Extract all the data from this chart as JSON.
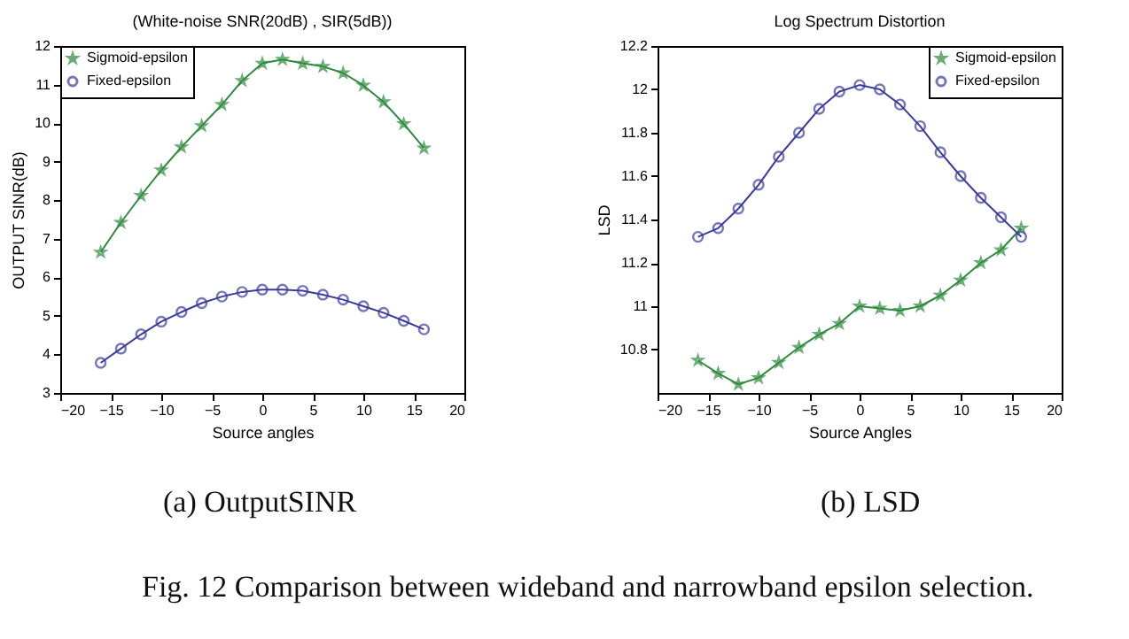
{
  "chart_data": [
    {
      "type": "line",
      "title": "(White-noise SNR(20dB) , SIR(5dB))",
      "xlabel": "Source angles",
      "ylabel": "OUTPUT SINR(dB)",
      "x": [
        -16,
        -14,
        -12,
        -10,
        -8,
        -6,
        -4,
        -2,
        0,
        2,
        4,
        6,
        8,
        10,
        12,
        14,
        16
      ],
      "series": [
        {
          "name": "Sigmoid-epsilon",
          "color": "#2e8b3e",
          "marker": "star",
          "values": [
            6.65,
            7.42,
            8.12,
            8.78,
            9.38,
            9.93,
            10.48,
            11.1,
            11.55,
            11.65,
            11.55,
            11.47,
            11.3,
            10.98,
            10.55,
            9.98,
            9.35
          ]
        },
        {
          "name": "Fixed-epsilon",
          "color": "#3b3b9e",
          "marker": "circle",
          "values": [
            3.78,
            4.15,
            4.52,
            4.85,
            5.1,
            5.33,
            5.5,
            5.62,
            5.68,
            5.68,
            5.65,
            5.55,
            5.42,
            5.25,
            5.08,
            4.87,
            4.65
          ]
        }
      ],
      "xlim": [
        -20,
        20
      ],
      "xticks": [
        -20,
        -15,
        -10,
        -5,
        0,
        5,
        10,
        15,
        20
      ],
      "ylim": [
        3,
        12
      ],
      "yticks": [
        3,
        4,
        5,
        6,
        7,
        8,
        9,
        10,
        11,
        12
      ],
      "legend": "top left",
      "grid": false,
      "annotations": [
        "(a) OutputSINR",
        "Fig. 12 Comparison between wideband and narrowband epsilon selection."
      ]
    },
    {
      "type": "line",
      "title": "Log Spectrum Distortion",
      "xlabel": "Source Angles",
      "ylabel": "LSD",
      "x": [
        -16,
        -14,
        -12,
        -10,
        -8,
        -6,
        -4,
        -2,
        0,
        2,
        4,
        6,
        8,
        10,
        12,
        14,
        16
      ],
      "series": [
        {
          "name": "Sigmoid-epsilon",
          "color": "#2e8b3e",
          "marker": "star",
          "values": [
            10.75,
            10.69,
            10.64,
            10.67,
            10.74,
            10.81,
            10.87,
            10.92,
            11.0,
            10.99,
            10.98,
            11.0,
            11.05,
            11.12,
            11.2,
            11.26,
            11.36
          ]
        },
        {
          "name": "Fixed-epsilon",
          "color": "#3b3b9e",
          "marker": "circle",
          "values": [
            11.32,
            11.36,
            11.45,
            11.56,
            11.69,
            11.8,
            11.91,
            11.99,
            12.02,
            12.0,
            11.93,
            11.83,
            11.71,
            11.6,
            11.5,
            11.41,
            11.32
          ]
        }
      ],
      "xlim": [
        -20,
        20
      ],
      "xticks": [
        -20,
        -15,
        -10,
        -5,
        0,
        5,
        10,
        15,
        20
      ],
      "ylim": [
        10.6,
        12.2
      ],
      "yticks": [
        10.8,
        11,
        11.2,
        11.4,
        11.6,
        11.8,
        12,
        12.2
      ],
      "legend": "top right",
      "grid": false,
      "annotations": [
        "(b) LSD"
      ]
    }
  ]
}
